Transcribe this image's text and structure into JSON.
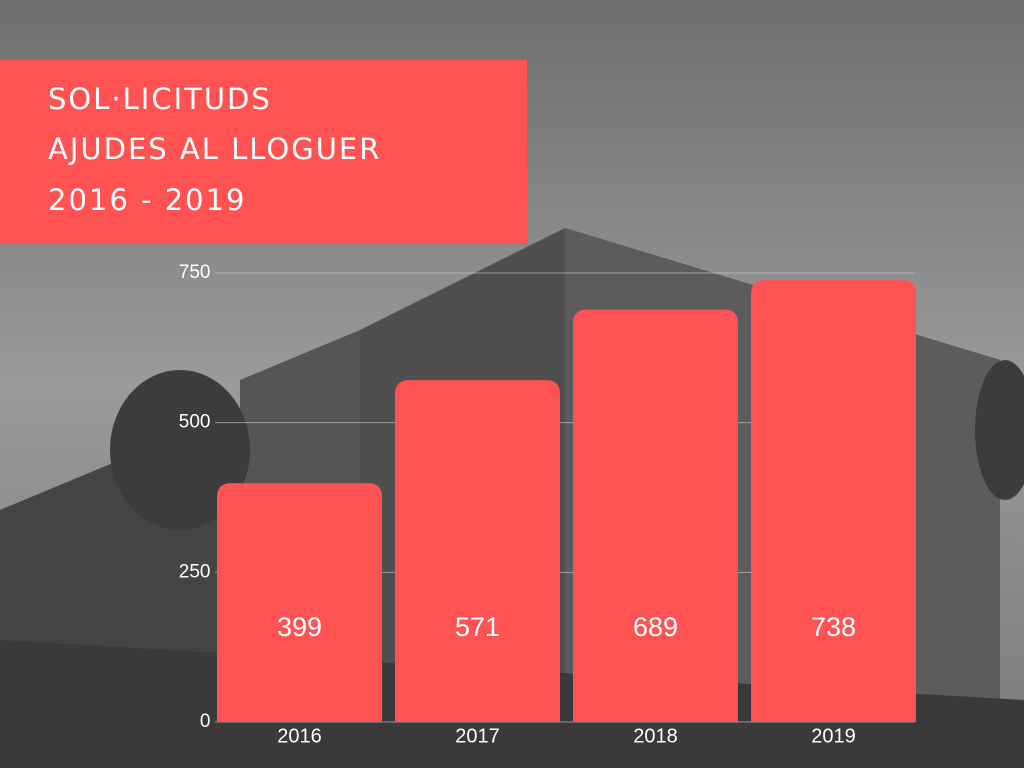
{
  "chart_data": {
    "type": "bar",
    "title": [
      "SOL·LICITUDS",
      "AJUDES AL LLOGUER",
      "2016 - 2019"
    ],
    "categories": [
      "2016",
      "2017",
      "2018",
      "2019"
    ],
    "values": [
      399,
      571,
      689,
      738
    ],
    "color": "#ff5252",
    "ylim": [
      0,
      750
    ],
    "yticks": [
      0,
      250,
      500,
      750
    ],
    "grid": true
  }
}
